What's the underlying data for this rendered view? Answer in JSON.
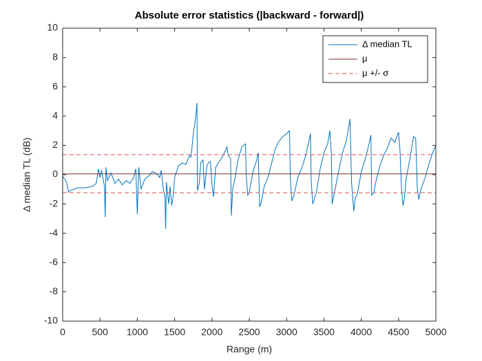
{
  "chart_data": {
    "type": "line",
    "title": "Absolute error statistics (|backward - forward|)",
    "x_label": "Range (m)",
    "y_label": "Δ median TL (dB)",
    "xlim": [
      0,
      5000
    ],
    "ylim": [
      -10,
      10
    ],
    "xticks": [
      0,
      500,
      1000,
      1500,
      2000,
      2500,
      3000,
      3500,
      4000,
      4500,
      5000
    ],
    "yticks": [
      -10,
      -8,
      -6,
      -4,
      -2,
      0,
      2,
      4,
      6,
      8,
      10
    ],
    "legend": "northeast",
    "series": [
      {
        "name": "Δ median TL",
        "color": "#0072bd",
        "style": "solid",
        "x": [
          0,
          50,
          80,
          100,
          200,
          300,
          400,
          450,
          480,
          500,
          520,
          560,
          570,
          580,
          600,
          650,
          700,
          750,
          800,
          850,
          900,
          950,
          980,
          1000,
          1020,
          1050,
          1100,
          1150,
          1200,
          1250,
          1300,
          1320,
          1350,
          1370,
          1380,
          1390,
          1420,
          1440,
          1460,
          1480,
          1500,
          1550,
          1600,
          1650,
          1700,
          1720,
          1750,
          1780,
          1800,
          1805,
          1830,
          1850,
          1880,
          1900,
          1930,
          1950,
          1980,
          2000,
          2020,
          2050,
          2100,
          2150,
          2200,
          2220,
          2250,
          2260,
          2280,
          2300,
          2350,
          2400,
          2450,
          2460,
          2480,
          2500,
          2550,
          2600,
          2620,
          2640,
          2660,
          2700,
          2750,
          2800,
          2850,
          2900,
          2950,
          3000,
          3040,
          3050,
          3070,
          3100,
          3150,
          3200,
          3250,
          3300,
          3320,
          3330,
          3350,
          3400,
          3450,
          3500,
          3550,
          3580,
          3600,
          3610,
          3650,
          3700,
          3750,
          3800,
          3850,
          3870,
          3900,
          3920,
          3950,
          4000,
          4050,
          4100,
          4130,
          4140,
          4170,
          4200,
          4250,
          4300,
          4350,
          4400,
          4450,
          4500,
          4520,
          4540,
          4560,
          4580,
          4600,
          4650,
          4700,
          4730,
          4750,
          4770,
          4800,
          4850,
          4900,
          4950,
          5000
        ],
        "values": [
          -0.1,
          -0.5,
          -1.2,
          -1.1,
          -0.9,
          -0.9,
          -0.8,
          -0.6,
          0.4,
          -0.2,
          0.3,
          -0.8,
          -2.9,
          0.5,
          -0.4,
          0.1,
          -0.6,
          -0.3,
          -0.7,
          -0.4,
          -0.6,
          -0.2,
          0.4,
          -2.7,
          0.5,
          -1.0,
          -0.3,
          -0.1,
          0.2,
          0.1,
          -0.2,
          0.3,
          -1.0,
          -1.5,
          -3.7,
          -0.5,
          -2.0,
          -0.8,
          -2.1,
          -1.5,
          -0.2,
          0.6,
          0.8,
          0.7,
          1.3,
          1.2,
          2.8,
          3.8,
          4.9,
          -1.1,
          -0.6,
          0.8,
          1.0,
          -1.0,
          0.5,
          0.8,
          0.9,
          -0.7,
          -1.5,
          0.5,
          0.9,
          1.3,
          1.9,
          1.3,
          1.1,
          -2.8,
          -0.9,
          -0.5,
          1.0,
          1.9,
          2.1,
          -0.1,
          -1.4,
          -1.2,
          0.2,
          1.0,
          1.5,
          -2.2,
          -1.9,
          -0.8,
          -0.2,
          0.8,
          1.8,
          2.3,
          2.6,
          2.8,
          3.0,
          -0.2,
          -1.8,
          -1.4,
          -0.2,
          0.4,
          1.2,
          2.3,
          2.8,
          -0.4,
          -2.0,
          -1.2,
          0.4,
          1.5,
          2.1,
          3.0,
          1.4,
          -2.0,
          -1.0,
          0.3,
          1.5,
          2.3,
          3.8,
          -0.5,
          -2.5,
          -1.6,
          -1.3,
          0.2,
          1.0,
          2.0,
          2.7,
          -1.4,
          -1.2,
          -0.4,
          0.6,
          1.3,
          1.8,
          2.5,
          2.2,
          2.9,
          1.6,
          -1.0,
          -2.1,
          -1.6,
          -0.3,
          1.0,
          2.6,
          2.5,
          -0.8,
          -1.7,
          -1.0,
          -0.3,
          0.6,
          1.4,
          2.0
        ]
      },
      {
        "name": "μ",
        "color": "#7a2a2a",
        "style": "solid",
        "hline": true,
        "values": [
          0.05
        ]
      },
      {
        "name": "μ +/- σ",
        "color": "#d9534f",
        "style": "dashed",
        "hline": true,
        "values": [
          1.37,
          -1.23
        ]
      }
    ]
  }
}
